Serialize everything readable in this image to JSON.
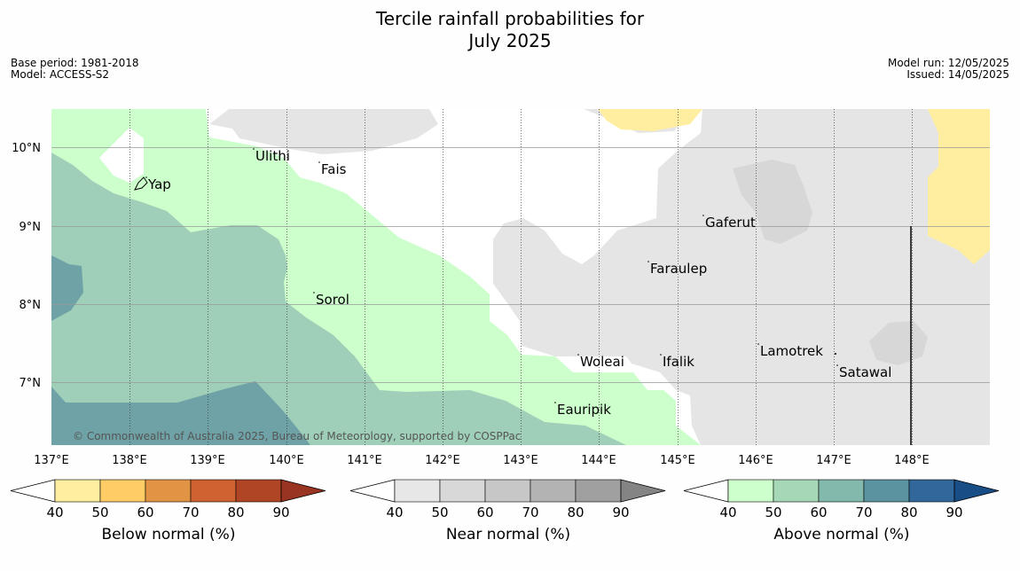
{
  "title_line1": "Tercile rainfall probabilities for",
  "title_line2": "July 2025",
  "meta": {
    "base_period": "Base period: 1981-2018",
    "model": "Model: ACCESS-S2",
    "model_run": "Model run: 12/05/2025",
    "issued": "Issued: 14/05/2025"
  },
  "map": {
    "lon_labels": [
      "137°E",
      "138°E",
      "139°E",
      "140°E",
      "141°E",
      "142°E",
      "143°E",
      "144°E",
      "145°E",
      "146°E",
      "147°E",
      "148°E"
    ],
    "lat_labels": [
      "10°N",
      "9°N",
      "8°N",
      "7°N"
    ],
    "places": [
      {
        "name": "Yap"
      },
      {
        "name": "Ulithi"
      },
      {
        "name": "Fais"
      },
      {
        "name": "Gaferut"
      },
      {
        "name": "Faraulep"
      },
      {
        "name": "Sorol"
      },
      {
        "name": "Woleai"
      },
      {
        "name": "Ifalik"
      },
      {
        "name": "Lamotrek"
      },
      {
        "name": "Satawal"
      },
      {
        "name": "Eauripik"
      }
    ],
    "copyright": "© Commonwealth of Australia 2025, Bureau of Meteorology, supported by COSPPac"
  },
  "colorbars": [
    {
      "label": "Below normal (%)",
      "ticks": [
        "40",
        "50",
        "60",
        "70",
        "80",
        "90"
      ],
      "colors": [
        "#ffeea0",
        "#ffcc66",
        "#e29444",
        "#cf6230",
        "#b04525",
        "#993322"
      ]
    },
    {
      "label": "Near normal (%)",
      "ticks": [
        "40",
        "50",
        "60",
        "70",
        "80",
        "90"
      ],
      "colors": [
        "#e7e7e7",
        "#d8d8d8",
        "#c7c7c7",
        "#b3b3b3",
        "#a0a0a0",
        "#848484"
      ]
    },
    {
      "label": "Above normal (%)",
      "ticks": [
        "40",
        "50",
        "60",
        "70",
        "80",
        "90"
      ],
      "colors": [
        "#ccffcc",
        "#a6d8b8",
        "#82b9ac",
        "#5b94a0",
        "#32679b",
        "#184d85"
      ]
    }
  ],
  "colors": {
    "above40": "#ccffcc",
    "above50": "#9fcfb9",
    "above60": "#6fa2a6",
    "near40": "#e5e5e5",
    "near50": "#d7d7d7",
    "below40": "#ffeea0"
  }
}
